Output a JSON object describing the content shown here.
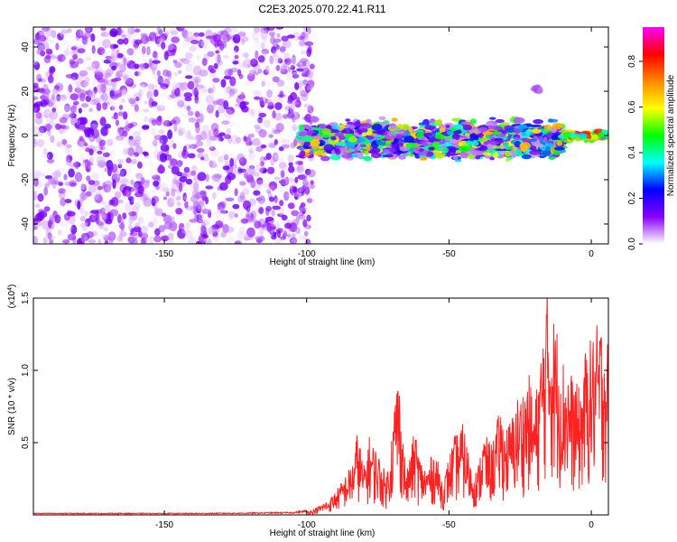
{
  "title": "C2E3.2025.070.22.41.R11",
  "chart_data": [
    {
      "type": "heatmap",
      "title": "C2E3.2025.070.22.41.R11",
      "xlabel": "Height of straight line (km)",
      "ylabel": "Frequency (Hz)",
      "xlim": [
        -196,
        6
      ],
      "ylim": [
        -49,
        49
      ],
      "x_ticks": [
        -150,
        -100,
        -50,
        0
      ],
      "y_ticks": [
        -40,
        -20,
        0,
        20,
        40
      ],
      "x_tick_labels": [
        "-150",
        "-100",
        "-50",
        "0"
      ],
      "y_tick_labels": [
        "-40",
        "-20",
        "0",
        "20",
        "40"
      ],
      "colorbar": {
        "label": "Normalized spectral amplitude",
        "range": [
          0,
          0.95
        ],
        "ticks": [
          0.0,
          0.2,
          0.4,
          0.6,
          0.8
        ],
        "tick_labels": [
          "0.0",
          "0.2",
          "0.4",
          "0.6",
          "0.8"
        ],
        "colormap": [
          "#ffffff",
          "#8800ff",
          "#0000ff",
          "#00ffff",
          "#00ff00",
          "#ffff00",
          "#ff8800",
          "#ff0000",
          "#ff00ff"
        ]
      },
      "regions": [
        {
          "x_range": [
            -196,
            -98
          ],
          "freq_range": [
            -49,
            49
          ],
          "amplitude_range": [
            0.0,
            0.15
          ],
          "description": "broadband noise"
        },
        {
          "x_range": [
            -102,
            -10
          ],
          "freq_range": [
            -13,
            9
          ],
          "amplitude_range": [
            0.05,
            0.7
          ]
        },
        {
          "x_range": [
            -10,
            6
          ],
          "freq_range": [
            -3,
            3
          ],
          "amplitude_range": [
            0.3,
            0.9
          ]
        },
        {
          "x_range": [
            -20,
            -18
          ],
          "freq_range": [
            18,
            24
          ],
          "amplitude_range": [
            0.05,
            0.1
          ]
        }
      ],
      "grid": false,
      "colors": {
        "accent": "#8800ff"
      }
    },
    {
      "type": "line",
      "xlabel": "Height of straight line (km)",
      "ylabel": "SNR (10 * v/v)",
      "y_multiplier": "(x10^4)",
      "xlim": [
        -196,
        6
      ],
      "ylim": [
        0,
        1.5
      ],
      "x_ticks": [
        -150,
        -100,
        -50,
        0
      ],
      "y_ticks": [
        0.5,
        1.0,
        1.5
      ],
      "x_tick_labels": [
        "-150",
        "-100",
        "-50",
        "0"
      ],
      "y_tick_labels": [
        "0.5",
        "1.0",
        "1.5"
      ],
      "series": [
        {
          "color": "#ff2020",
          "x": [
            -196,
            -180,
            -160,
            -140,
            -120,
            -105,
            -98,
            -92,
            -88,
            -84,
            -82,
            -80,
            -78,
            -75,
            -72,
            -70,
            -68,
            -65,
            -62,
            -60,
            -58,
            -55,
            -52,
            -50,
            -48,
            -45,
            -42,
            -40,
            -38,
            -35,
            -32,
            -30,
            -28,
            -26,
            -24,
            -22,
            -20,
            -18,
            -16,
            -15,
            -14,
            -12,
            -10,
            -8,
            -6,
            -4,
            -2,
            0,
            2,
            4,
            6
          ],
          "y": [
            0.01,
            0.01,
            0.01,
            0.01,
            0.012,
            0.015,
            0.03,
            0.1,
            0.2,
            0.33,
            0.55,
            0.3,
            0.5,
            0.4,
            0.25,
            0.55,
            0.95,
            0.25,
            0.55,
            0.35,
            0.3,
            0.42,
            0.2,
            0.38,
            0.5,
            0.58,
            0.3,
            0.28,
            0.52,
            0.45,
            0.68,
            0.55,
            0.62,
            0.75,
            0.8,
            0.9,
            0.7,
            1.0,
            1.38,
            1.5,
            1.3,
            1.2,
            1.0,
            0.95,
            0.85,
            0.8,
            1.05,
            1.12,
            1.2,
            1.25,
            1.1
          ]
        }
      ],
      "grid": false
    }
  ]
}
